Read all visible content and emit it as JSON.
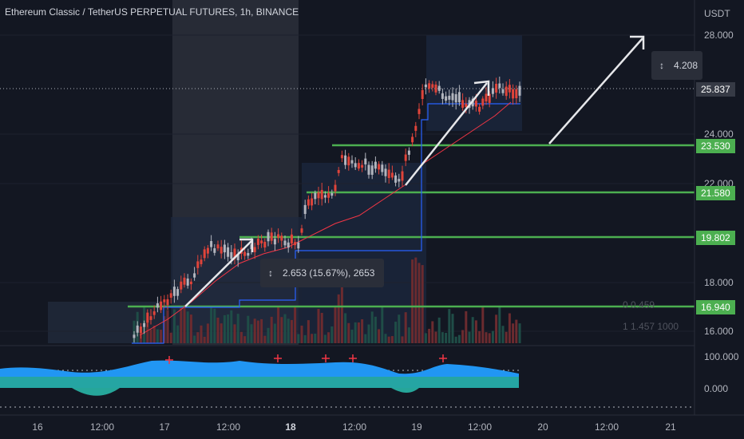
{
  "header": {
    "title": "Ethereum Classic / TetherUS PERPETUAL FUTURES, 1h, BINANCE"
  },
  "axis": {
    "currency": "USDT",
    "y_labels": [
      "28.000",
      "24.000",
      "22.000",
      "18.000",
      "16.000"
    ],
    "osc_labels": [
      "100.000",
      "0.000"
    ],
    "x_labels": [
      "16",
      "12:00",
      "17",
      "12:00",
      "18",
      "12:00",
      "19",
      "12:00",
      "20",
      "12:00",
      "21"
    ]
  },
  "price_levels": [
    "23.530",
    "21.580",
    "19.802",
    "16.940"
  ],
  "current_price": "25.837",
  "measures": [
    {
      "text": "2.653 (15.67%), 2653",
      "icon": "measure-arrows-icon"
    },
    {
      "text": "4.208",
      "icon": "measure-arrows-icon"
    }
  ],
  "volume_legend": [
    "0  0.459",
    "1  1.457  1000"
  ],
  "colors": {
    "bg": "#131722",
    "up": "#b2b5be",
    "down": "#e0443a",
    "level": "#4caf50",
    "ma": "#f23645",
    "step": "#2962ff",
    "price_badge": "#363a45"
  }
}
